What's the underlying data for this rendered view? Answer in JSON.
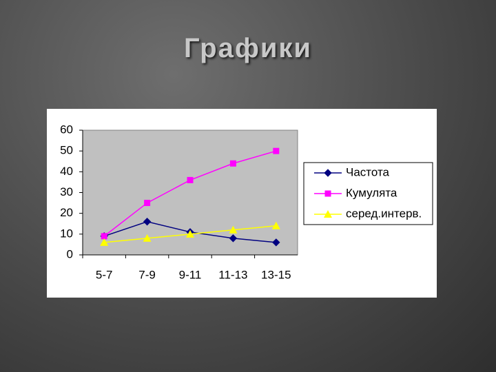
{
  "title": "Графики",
  "chart_data": {
    "type": "line",
    "categories": [
      "5-7",
      "7-9",
      "9-11",
      "11-13",
      "13-15"
    ],
    "series": [
      {
        "name": "Частота",
        "color": "#000080",
        "marker": "diamond",
        "values": [
          9,
          16,
          11,
          8,
          6
        ]
      },
      {
        "name": "Кумулята",
        "color": "#ff00ff",
        "marker": "square",
        "values": [
          9,
          25,
          36,
          44,
          50
        ]
      },
      {
        "name": "серед.интерв.",
        "color": "#ffff00",
        "marker": "triangle",
        "values": [
          6,
          8,
          10,
          12,
          14
        ]
      }
    ],
    "ylim": [
      0,
      60
    ],
    "yticks": [
      0,
      10,
      20,
      30,
      40,
      50,
      60
    ],
    "grid": false,
    "legend": "right"
  }
}
